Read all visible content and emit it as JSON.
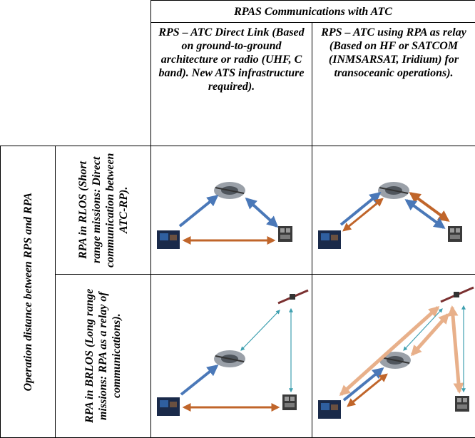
{
  "table": {
    "top_header": "RPAS Communications with ATC",
    "col1_header": "RPS – ATC Direct Link (Based on ground-to-ground architecture or radio (UHF, C band). New ATS infrastructure required).",
    "col2_header": "RPS – ATC using RPA as relay (Based on HF or SATCOM (INMSARSAT, Iridium) for transoceanic operations).",
    "side_header": "Operation distance between RPS and RPA",
    "row1_header": "RPA in RLOS (Short range missions: Direct communication between ATC-RP).",
    "row2_header": "RPA in BRLOS (Long range missions: RPA as a relay of communications)."
  },
  "colors": {
    "blue_link": "#4a78b8",
    "orange_link": "#c0652a",
    "light_blue_link": "#3fa0b0",
    "light_orange_link": "#e8b08a"
  },
  "icons": [
    "drone-icon",
    "satellite-icon",
    "pilot-station-icon",
    "atc-tower-icon"
  ]
}
